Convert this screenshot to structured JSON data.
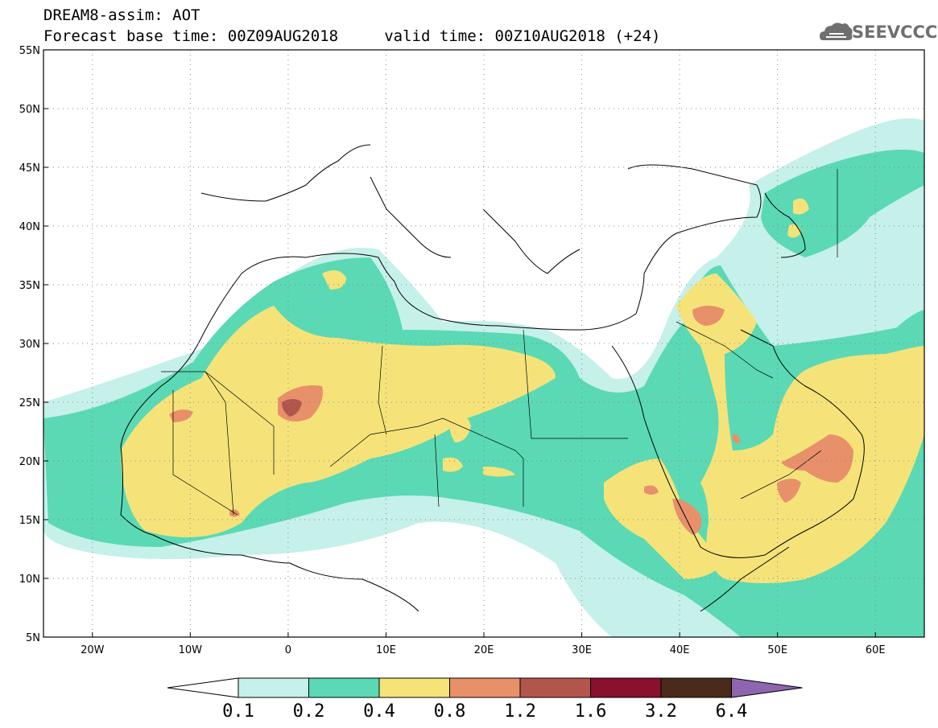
{
  "header": {
    "title": "DREAM8-assim: AOT",
    "forecast_line": "Forecast base time: 00Z09AUG2018     valid time: 00Z10AUG2018 (+24)"
  },
  "logo": {
    "text": "SEEVCCC",
    "icon": "cloud-logo-icon"
  },
  "axes": {
    "lat_labels": [
      "55N",
      "50N",
      "45N",
      "40N",
      "35N",
      "30N",
      "25N",
      "20N",
      "15N",
      "10N",
      "5N"
    ],
    "lon_labels": [
      "20W",
      "10W",
      "0",
      "10E",
      "20E",
      "30E",
      "40E",
      "50E",
      "60E"
    ],
    "lat_range": [
      5,
      55
    ],
    "lon_range": [
      -25,
      65
    ],
    "grid": "dotted"
  },
  "colorbar": {
    "labels": [
      "0.1",
      "0.2",
      "0.4",
      "0.8",
      "1.2",
      "1.6",
      "3.2",
      "6.4"
    ],
    "colors": [
      "#c6f0ea",
      "#5ad9b4",
      "#f5e37a",
      "#e8906a",
      "#b2564b",
      "#8a1030",
      "#4a2a1a",
      "#8e66b0"
    ]
  },
  "field": {
    "variable": "AOT"
  }
}
